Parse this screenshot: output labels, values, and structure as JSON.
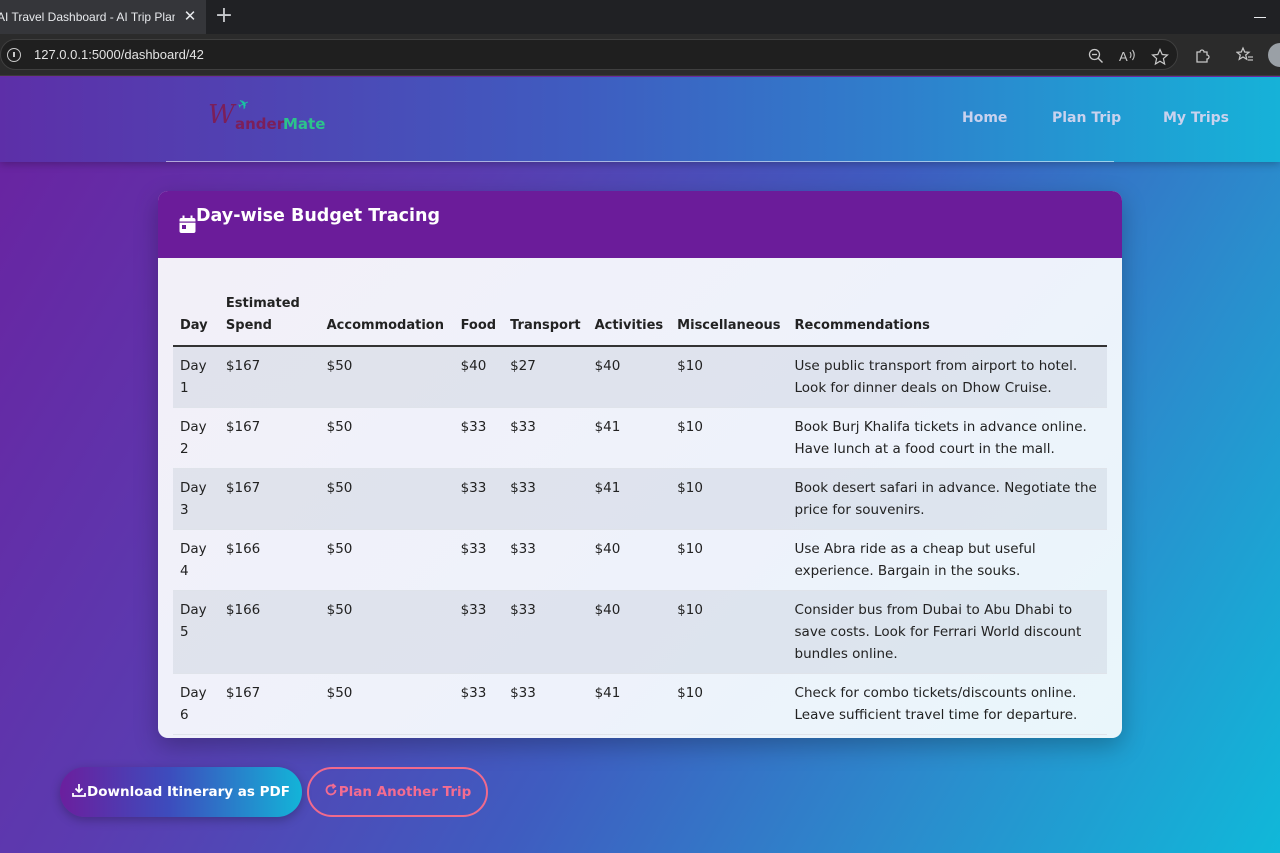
{
  "browser": {
    "tab_title": "AI Travel Dashboard - AI Trip Planner",
    "close_glyph": "✕",
    "new_tab_glyph": "+",
    "url": "127.0.0.1:5000/dashboard/42",
    "icons": [
      "info-icon",
      "zoom-out-icon",
      "read-aloud-icon",
      "favorite-star-icon",
      "extensions-icon",
      "favorites-icon",
      "profile-icon"
    ]
  },
  "navbar": {
    "logo": {
      "w": "W",
      "ander": "ander",
      "mate": "Mate"
    },
    "links": {
      "home": "Home",
      "plan_trip": "Plan Trip",
      "my_trips": "My Trips"
    }
  },
  "budget_card": {
    "title": "Day-wise Budget Tracing",
    "icon": "calendar-icon",
    "columns": {
      "day": "Day",
      "estimated_spend": "Estimated Spend",
      "accommodation": "Accommodation",
      "food": "Food",
      "transport": "Transport",
      "activities": "Activities",
      "miscellaneous": "Miscellaneous",
      "recommendations": "Recommendations"
    },
    "rows": [
      {
        "day": "Day 1",
        "est": "$167",
        "acc": "$50",
        "food": "$40",
        "trans": "$27",
        "act": "$40",
        "misc": "$10",
        "rec": "Use public transport from airport to hotel. Look for dinner deals on Dhow Cruise."
      },
      {
        "day": "Day 2",
        "est": "$167",
        "acc": "$50",
        "food": "$33",
        "trans": "$33",
        "act": "$41",
        "misc": "$10",
        "rec": "Book Burj Khalifa tickets in advance online. Have lunch at a food court in the mall."
      },
      {
        "day": "Day 3",
        "est": "$167",
        "acc": "$50",
        "food": "$33",
        "trans": "$33",
        "act": "$41",
        "misc": "$10",
        "rec": "Book desert safari in advance. Negotiate the price for souvenirs."
      },
      {
        "day": "Day 4",
        "est": "$166",
        "acc": "$50",
        "food": "$33",
        "trans": "$33",
        "act": "$40",
        "misc": "$10",
        "rec": "Use Abra ride as a cheap but useful experience. Bargain in the souks."
      },
      {
        "day": "Day 5",
        "est": "$166",
        "acc": "$50",
        "food": "$33",
        "trans": "$33",
        "act": "$40",
        "misc": "$10",
        "rec": "Consider bus from Dubai to Abu Dhabi to save costs. Look for Ferrari World discount bundles online."
      },
      {
        "day": "Day 6",
        "est": "$167",
        "acc": "$50",
        "food": "$33",
        "trans": "$33",
        "act": "$41",
        "misc": "$10",
        "rec": "Check for combo tickets/discounts online. Leave sufficient travel time for departure."
      }
    ]
  },
  "actions": {
    "download_pdf": "Download Itinerary as PDF",
    "plan_another": "Plan Another Trip",
    "download_icon": "download-icon",
    "redo_icon": "redo-icon"
  },
  "colors": {
    "card_header": "#6b1c9a",
    "plan_another_accent": "#f46c90",
    "page_gradient_start": "#6a22a0",
    "page_gradient_end": "#10b8d9"
  }
}
